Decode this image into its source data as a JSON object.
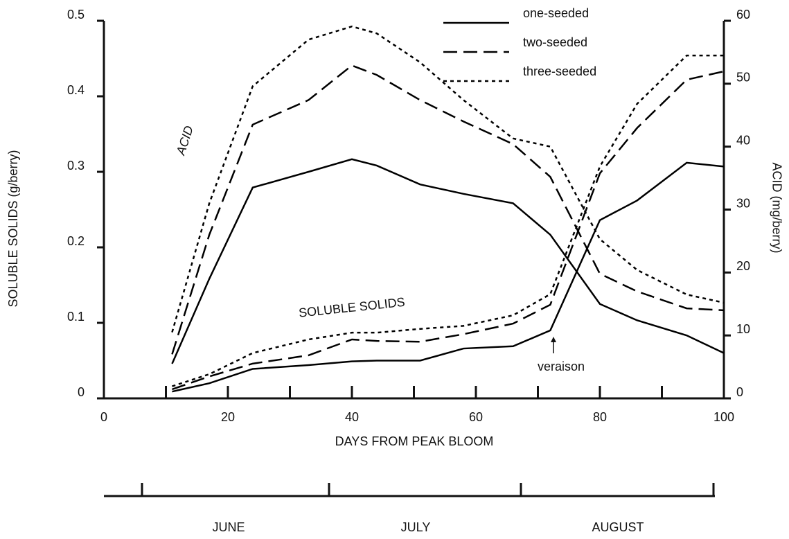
{
  "chart_data": {
    "type": "line",
    "xlabel": "DAYS FROM PEAK BLOOM",
    "ylabel": "SOLUBLE SOLIDS    (g/berry)",
    "y2label": "ACID (mg/berry)",
    "x": [
      11,
      17,
      24,
      33,
      40,
      44,
      51,
      58,
      66,
      72,
      80,
      86,
      94,
      100
    ],
    "xlim": [
      0,
      100
    ],
    "xticks": [
      0,
      20,
      40,
      60,
      80,
      100
    ],
    "ylim": [
      0,
      0.5
    ],
    "yticks": [
      0,
      0.1,
      0.2,
      0.3,
      0.4,
      0.5
    ],
    "y2lim": [
      0,
      60
    ],
    "y2ticks": [
      0,
      10,
      20,
      30,
      40,
      50,
      60
    ],
    "series": [
      {
        "name": "one-seeded",
        "color": "#000000",
        "dash": "solid",
        "values": [
          0.009,
          0.02,
          0.039,
          0.044,
          0.049,
          0.05,
          0.05,
          0.066,
          0.069,
          0.09,
          0.236,
          0.262,
          0.312,
          0.307
        ],
        "y2_values": [
          5.5,
          19,
          33.5,
          36,
          38,
          37,
          34,
          32.5,
          31,
          26,
          15,
          12.4,
          10,
          7.2
        ]
      },
      {
        "name": "two-seeded",
        "color": "#000000",
        "dash": "long",
        "values": [
          0.012,
          0.029,
          0.046,
          0.057,
          0.078,
          0.076,
          0.075,
          0.085,
          0.099,
          0.124,
          0.298,
          0.358,
          0.422,
          0.433
        ],
        "y2_values": [
          7,
          26,
          43.5,
          47.4,
          52.9,
          51.4,
          47.4,
          44,
          40.4,
          35.2,
          19.8,
          17,
          14.3,
          14
        ]
      },
      {
        "name": "three-seeded",
        "color": "#000000",
        "dash": "short",
        "values": [
          0.016,
          0.032,
          0.06,
          0.078,
          0.087,
          0.087,
          0.092,
          0.096,
          0.11,
          0.138,
          0.307,
          0.39,
          0.454,
          0.454
        ],
        "y2_values": [
          10.5,
          31,
          49.6,
          57,
          59.1,
          58,
          53.4,
          47.4,
          41.3,
          40,
          25.3,
          20.4,
          16.5,
          15.2
        ]
      }
    ],
    "annotations": [
      "ACID",
      "SOLUBLE SOLIDS",
      "veraison"
    ],
    "months": [
      "JUNE",
      "JULY",
      "AUGUST"
    ]
  }
}
